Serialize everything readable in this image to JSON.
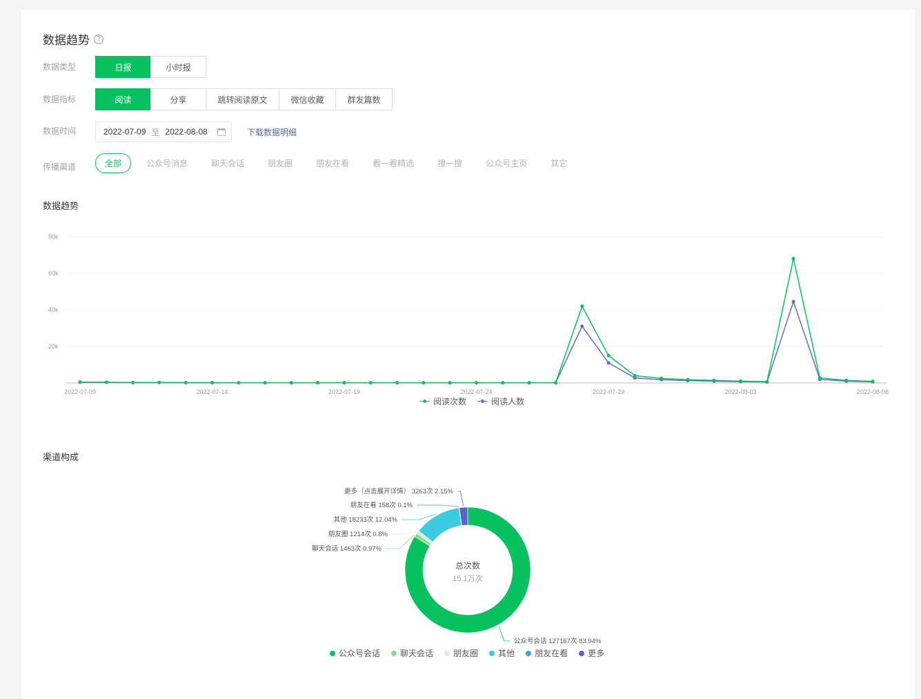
{
  "header": {
    "title": "数据趋势",
    "help_icon": "?"
  },
  "filters": {
    "type": {
      "label": "数据类型",
      "options": [
        "日报",
        "小时报"
      ],
      "active": 0
    },
    "metric": {
      "label": "数据指标",
      "options": [
        "阅读",
        "分享",
        "跳转阅读原文",
        "微信收藏",
        "群发篇数"
      ],
      "active": 0
    },
    "time": {
      "label": "数据时间",
      "start": "2022-07-09",
      "sep": "至",
      "end": "2022-08-08",
      "download": "下载数据明细"
    },
    "channel": {
      "label": "传播渠道",
      "options": [
        "全部",
        "公众号消息",
        "聊天会话",
        "朋友圈",
        "朋友在看",
        "看一看精选",
        "搜一搜",
        "公众号主页",
        "其它"
      ],
      "active": 0
    }
  },
  "trend": {
    "title": "数据趋势"
  },
  "composition": {
    "title": "渠道构成",
    "center_label": "总次数",
    "center_value": "15.1万次"
  },
  "chart_data": [
    {
      "type": "line",
      "title": "",
      "x_ticks": [
        "2022-07-09",
        "2022-07-14",
        "2022-07-19",
        "2022-07-24",
        "2022-07-29",
        "2022-08-03",
        "2022-08-08"
      ],
      "y_ticks": [
        "20k",
        "40k",
        "60k",
        "80k"
      ],
      "ylim": [
        0,
        80000
      ],
      "x": [
        "2022-07-09",
        "2022-07-10",
        "2022-07-11",
        "2022-07-12",
        "2022-07-13",
        "2022-07-14",
        "2022-07-15",
        "2022-07-16",
        "2022-07-17",
        "2022-07-18",
        "2022-07-19",
        "2022-07-20",
        "2022-07-21",
        "2022-07-22",
        "2022-07-23",
        "2022-07-24",
        "2022-07-25",
        "2022-07-26",
        "2022-07-27",
        "2022-07-28",
        "2022-07-29",
        "2022-07-30",
        "2022-07-31",
        "2022-08-01",
        "2022-08-02",
        "2022-08-03",
        "2022-08-04",
        "2022-08-05",
        "2022-08-06",
        "2022-08-07",
        "2022-08-08"
      ],
      "series": [
        {
          "name": "阅读次数",
          "color": "#07c160",
          "values": [
            500,
            400,
            300,
            300,
            200,
            200,
            100,
            100,
            100,
            100,
            100,
            100,
            100,
            100,
            100,
            100,
            100,
            100,
            100,
            42000,
            15000,
            4000,
            2500,
            1800,
            1400,
            1000,
            700,
            68000,
            2800,
            1400,
            900
          ]
        },
        {
          "name": "阅读人数",
          "color": "#6467d0",
          "values": [
            400,
            300,
            200,
            200,
            150,
            150,
            80,
            80,
            80,
            80,
            80,
            80,
            80,
            80,
            80,
            80,
            80,
            80,
            80,
            31000,
            11000,
            2800,
            1800,
            1300,
            1000,
            700,
            500,
            44500,
            2000,
            1000,
            600
          ]
        }
      ]
    },
    {
      "type": "pie",
      "slices": [
        {
          "name": "公众号会话",
          "value": 127167,
          "percent": "83.94%",
          "label": "公众号会话 127167次 83.94%",
          "color": "#07c160"
        },
        {
          "name": "聊天会话",
          "value": 1463,
          "percent": "0.97%",
          "label": "聊天会话 1463次 0.97%",
          "color": "#8fd88d"
        },
        {
          "name": "朋友圈",
          "value": 1214,
          "percent": "0.8%",
          "label": "朋友圈 1214次 0.8%",
          "color": "#d3f0d4"
        },
        {
          "name": "其他",
          "value": 18233,
          "percent": "12.04%",
          "label": "其他 18233次 12.04%",
          "color": "#3ccbe0"
        },
        {
          "name": "朋友在看",
          "value": 158,
          "percent": "0.1%",
          "label": "朋友在看 158次 0.1%",
          "color": "#3b9ee8"
        },
        {
          "name": "更多",
          "value": 3263,
          "percent": "2.15%",
          "label": "更多（点击展开详情） 3263次 2.15%",
          "color": "#5c63cc"
        }
      ],
      "legend": [
        "公众号会话",
        "聊天会话",
        "朋友圈",
        "其他",
        "朋友在看",
        "更多"
      ]
    }
  ]
}
